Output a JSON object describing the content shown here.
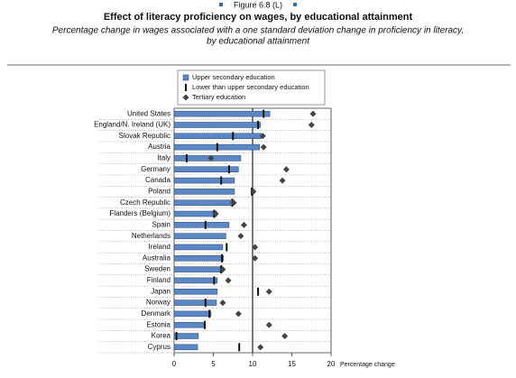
{
  "chart_data": {
    "type": "bar",
    "figure": "Figure 6.8 (L)",
    "title": "Effect of literacy proficiency on wages, by educational attainment",
    "subtitle": [
      "Percentage change in wages associated with a one standard deviation change in proficiency in literacy,",
      "by educational attainment"
    ],
    "xlabel": "Percentage change",
    "categories": [
      "United States",
      "England/N. Ireland (UK)",
      "Slovak Republic",
      "Austria",
      "Italy",
      "Germany",
      "Canada",
      "Poland",
      "Czech Republic",
      "Flanders (Belgium)",
      "Spain",
      "Netherlands",
      "Ireland",
      "Australia",
      "Sweden",
      "Finland",
      "Japan",
      "Norway",
      "Denmark",
      "Estonia",
      "Korea",
      "Cyprus"
    ],
    "series": [
      {
        "name": "Upper secondary education",
        "marker": "bar",
        "color": "#5b87c5",
        "values": [
          12.2,
          11.0,
          11.1,
          10.9,
          8.5,
          8.2,
          7.7,
          7.7,
          7.2,
          5.4,
          7.0,
          6.6,
          6.2,
          6.3,
          5.9,
          5.5,
          5.5,
          5.4,
          4.7,
          4.0,
          3.1,
          3.0
        ]
      },
      {
        "name": "Lower than upper secondary education",
        "marker": "line",
        "color": "#111111",
        "values": [
          11.4,
          10.7,
          7.5,
          5.5,
          1.6,
          7.0,
          6.0,
          9.9,
          7.4,
          5.1,
          4.0,
          null,
          6.7,
          6.1,
          6.0,
          5.1,
          10.7,
          4.0,
          4.5,
          3.9,
          0.3,
          8.3
        ]
      },
      {
        "name": "Tertiary education",
        "marker": "diamond",
        "color": "#444444",
        "values": [
          17.7,
          17.5,
          11.3,
          11.4,
          4.7,
          14.3,
          13.8,
          10.1,
          7.6,
          5.3,
          8.9,
          8.5,
          10.3,
          10.3,
          6.2,
          6.9,
          12.1,
          6.2,
          8.2,
          12.1,
          14.1,
          11.0
        ]
      }
    ],
    "xlim": [
      0,
      20
    ],
    "xticks": [
      0,
      5,
      10,
      15,
      20
    ],
    "reference_line": 10
  }
}
